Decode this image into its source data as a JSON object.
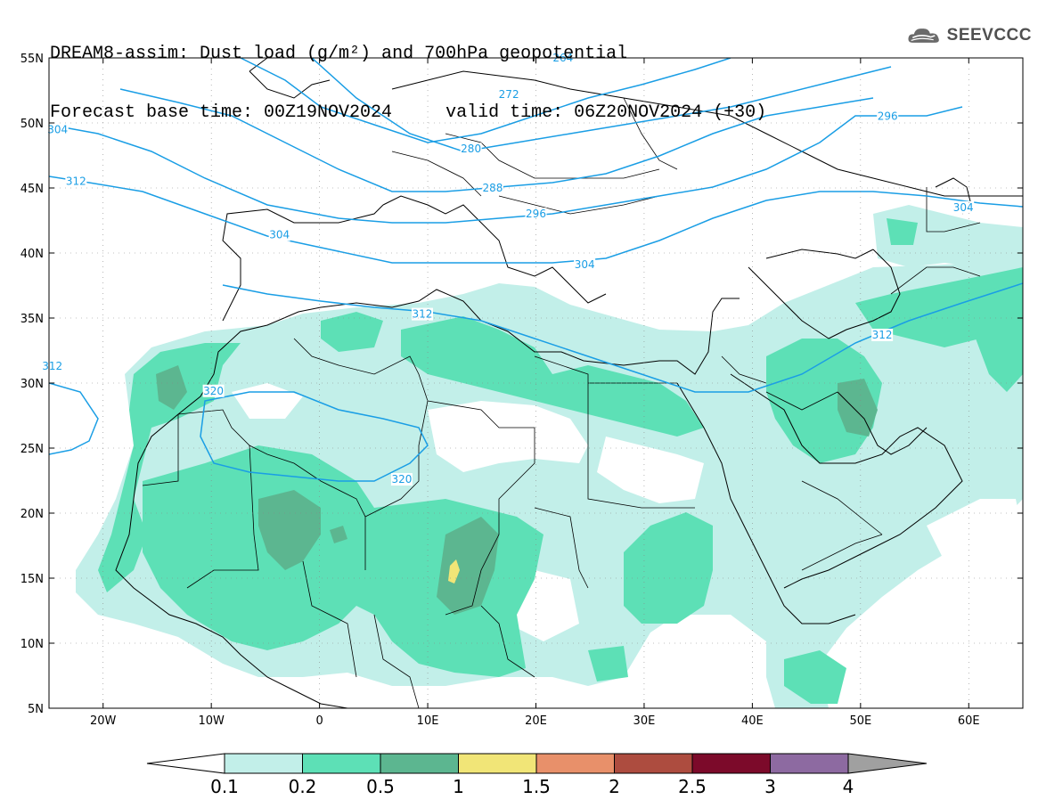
{
  "header": {
    "line1": "DREAM8-assim: Dust load (g/m²) and 700hPa geopotential",
    "line2": "Forecast base time: 00Z19NOV2024     valid time: 06Z20NOV2024 (+30)"
  },
  "logo": {
    "text": "SEEVCCC",
    "icon": "cloud-logo-icon"
  },
  "map": {
    "lon_range": [
      -25,
      65
    ],
    "lat_range": [
      5,
      55
    ],
    "lat_labels": [
      "5N",
      "10N",
      "15N",
      "20N",
      "25N",
      "30N",
      "35N",
      "40N",
      "45N",
      "50N",
      "55N"
    ],
    "lon_labels": [
      "20W",
      "10W",
      "0",
      "10E",
      "20E",
      "30E",
      "40E",
      "50E",
      "60E"
    ],
    "lat_values": [
      5,
      10,
      15,
      20,
      25,
      30,
      35,
      40,
      45,
      50,
      55
    ],
    "lon_values": [
      -20,
      -10,
      0,
      10,
      20,
      30,
      40,
      50,
      60
    ],
    "contour_color": "#1a9ee5",
    "contour_labels": [
      {
        "text": "264",
        "lon": 22.5,
        "lat": 55.0
      },
      {
        "text": "272",
        "lon": 17.5,
        "lat": 52.2
      },
      {
        "text": "280",
        "lon": 14.0,
        "lat": 48.0
      },
      {
        "text": "288",
        "lon": 16.0,
        "lat": 45.0
      },
      {
        "text": "296",
        "lon": 20.0,
        "lat": 43.0
      },
      {
        "text": "296",
        "lon": 52.5,
        "lat": 50.5
      },
      {
        "text": "304",
        "lon": -24.2,
        "lat": 49.5
      },
      {
        "text": "304",
        "lon": -3.7,
        "lat": 41.4
      },
      {
        "text": "304",
        "lon": 24.5,
        "lat": 39.1
      },
      {
        "text": "304",
        "lon": 59.5,
        "lat": 43.5
      },
      {
        "text": "312",
        "lon": -22.5,
        "lat": 45.5
      },
      {
        "text": "312",
        "lon": 9.5,
        "lat": 35.3
      },
      {
        "text": "312",
        "lon": -24.7,
        "lat": 31.3
      },
      {
        "text": "312",
        "lon": 52.0,
        "lat": 33.7
      },
      {
        "text": "320",
        "lon": -9.8,
        "lat": 29.4
      },
      {
        "text": "320",
        "lon": 7.6,
        "lat": 22.6
      }
    ]
  },
  "colorbar": {
    "labels": [
      "0.1",
      "0.2",
      "0.5",
      "1",
      "1.5",
      "2",
      "2.5",
      "3",
      "4"
    ],
    "colors": [
      "#c2efe9",
      "#5de0b6",
      "#5cb690",
      "#f1e577",
      "#e8906a",
      "#ad4c3f",
      "#7c0a2a",
      "#8d6aa1"
    ],
    "under_color": "#ffffff",
    "over_color": "#a0a0a0"
  }
}
